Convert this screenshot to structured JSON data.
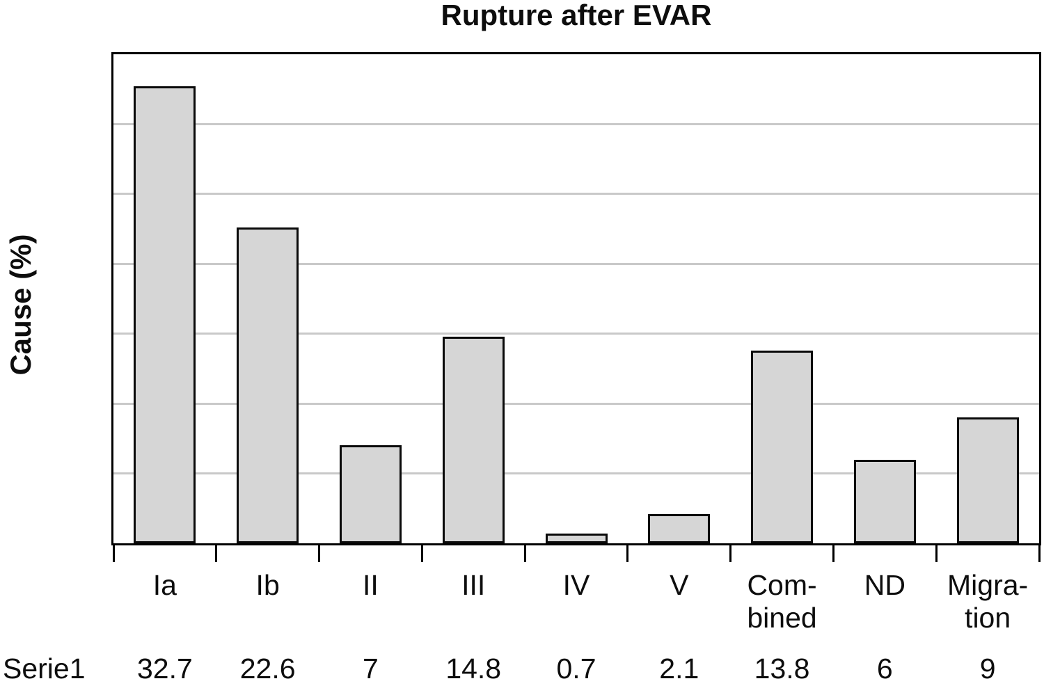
{
  "chart_data": {
    "type": "bar",
    "title": "Rupture after EVAR",
    "ylabel": "Cause (%)",
    "xlabel": "",
    "categories": [
      "Ia",
      "Ib",
      "II",
      "III",
      "IV",
      "V",
      "Combined",
      "ND",
      "Migration"
    ],
    "category_labels_wrapped": [
      [
        "Ia"
      ],
      [
        "Ib"
      ],
      [
        "II"
      ],
      [
        "III"
      ],
      [
        "IV"
      ],
      [
        "V"
      ],
      [
        "Com-",
        "bined"
      ],
      [
        "ND"
      ],
      [
        "Migra-",
        "tion"
      ]
    ],
    "series": [
      {
        "name": "Serie1",
        "values": [
          32.7,
          22.6,
          7,
          14.8,
          0.7,
          2.1,
          13.8,
          6,
          9
        ],
        "values_display": [
          "32.7",
          "22.6",
          "7",
          "14.8",
          "0.7",
          "2.1",
          "13.8",
          "6",
          "9"
        ]
      }
    ],
    "ylim": [
      0,
      35
    ],
    "y_gridline_interval": 5,
    "grid": true,
    "y_tick_labels_visible": false,
    "legend_position": "none",
    "data_table_below": true
  },
  "colors": {
    "bar_fill": "#d6d6d6",
    "bar_border": "#0a0a0a",
    "gridline": "#c9c9c9",
    "plot_border": "#000000",
    "background": "#ffffff",
    "text": "#0d0d0d"
  }
}
